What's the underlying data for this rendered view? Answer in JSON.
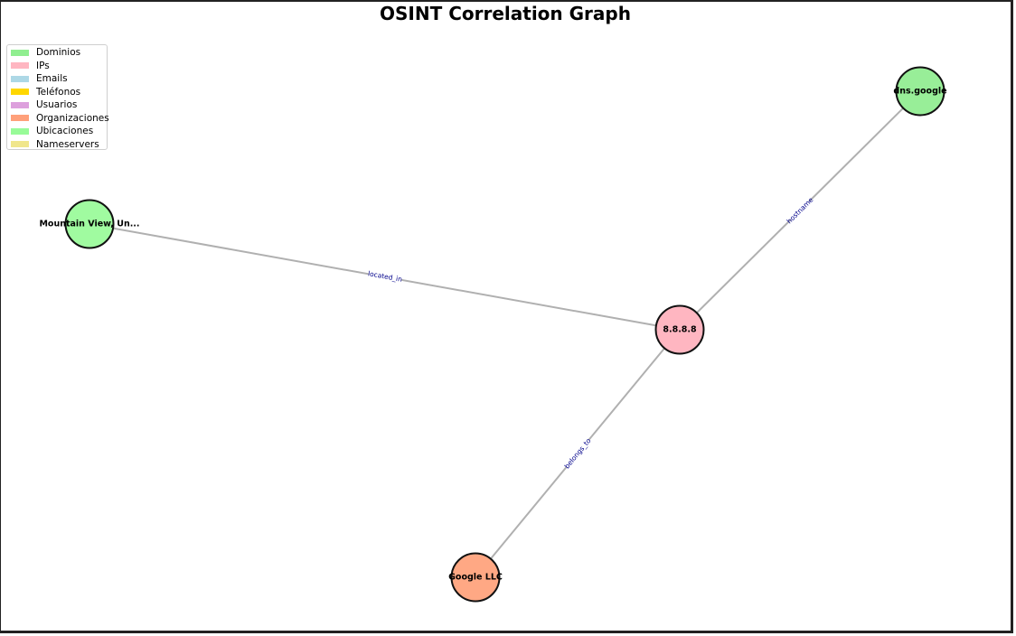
{
  "title": "OSINT Correlation Graph",
  "legend": [
    {
      "label": "Dominios",
      "color": "#90ee90"
    },
    {
      "label": "IPs",
      "color": "#ffb6c1"
    },
    {
      "label": "Emails",
      "color": "#add8e6"
    },
    {
      "label": "Teléfonos",
      "color": "#ffd700"
    },
    {
      "label": "Usuarios",
      "color": "#dda0dd"
    },
    {
      "label": "Organizaciones",
      "color": "#ffa07a"
    },
    {
      "label": "Ubicaciones",
      "color": "#98fb98"
    },
    {
      "label": "Nameservers",
      "color": "#f0e68c"
    }
  ],
  "nodes": [
    {
      "id": "ip",
      "label": "8.8.8.8",
      "type": "IPs",
      "color": "#ffb6c1"
    },
    {
      "id": "dns",
      "label": "dns.google",
      "type": "Dominios",
      "color": "#98ee98"
    },
    {
      "id": "loc",
      "label": "Mountain View, Un...",
      "type": "Ubicaciones",
      "color": "#a0fba0"
    },
    {
      "id": "org",
      "label": "Google LLC",
      "type": "Organizaciones",
      "color": "#ffa884"
    }
  ],
  "edges": [
    {
      "from": "ip",
      "to": "dns",
      "label": "hostname"
    },
    {
      "from": "loc",
      "to": "ip",
      "label": "located_in"
    },
    {
      "from": "ip",
      "to": "org",
      "label": "belongs_to"
    }
  ]
}
